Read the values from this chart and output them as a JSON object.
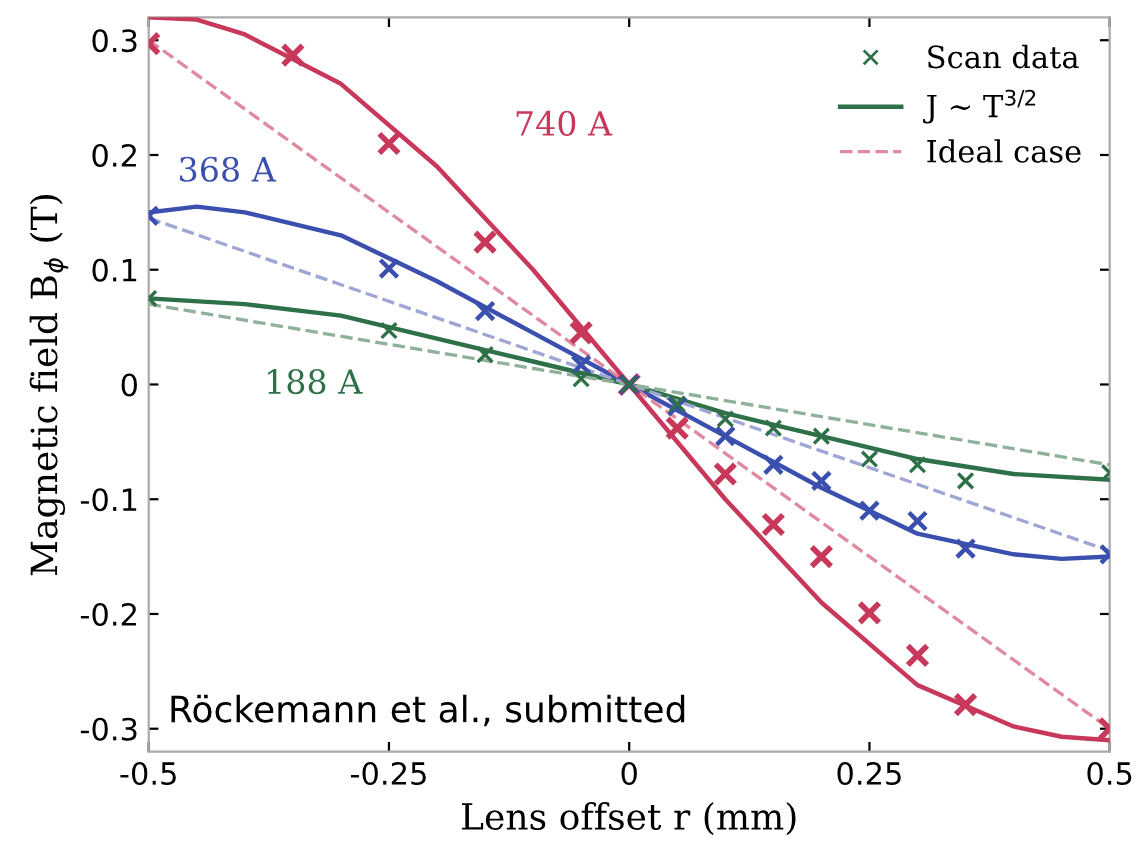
{
  "chart_data": {
    "type": "line",
    "xlabel": "Lens offset r (mm)",
    "ylabel": "Magnetic field B$_{ϕ}$ (T)",
    "xlim": [
      -0.5,
      0.5
    ],
    "xticks": [
      -0.5,
      -0.25,
      0,
      0.25,
      0.5
    ],
    "ylim": [
      -0.32,
      0.32
    ],
    "yticks": [
      -0.3,
      -0.2,
      -0.1,
      0,
      0.1,
      0.2,
      0.3
    ],
    "grid": false,
    "legend": "top right",
    "series": [
      {
        "type": "scatter",
        "marker": "cross",
        "color": "#c8385a",
        "x": [
          -0.5,
          -0.35,
          -0.25,
          -0.15,
          -0.05,
          0,
          0.05,
          0.1,
          0.15,
          0.2,
          0.25,
          0.3,
          0.35,
          0.5
        ],
        "values": [
          0.297,
          0.287,
          0.21,
          0.124,
          0.045,
          0,
          -0.038,
          -0.078,
          -0.122,
          -0.15,
          -0.199,
          -0.236,
          -0.279,
          -0.3
        ]
      },
      {
        "type": "scatter",
        "marker": "cross",
        "color": "#3a4fae",
        "x": [
          -0.5,
          -0.25,
          -0.15,
          -0.05,
          0,
          0.05,
          0.1,
          0.15,
          0.2,
          0.25,
          0.3,
          0.35,
          0.5
        ],
        "values": [
          0.147,
          0.101,
          0.064,
          0.017,
          0,
          -0.019,
          -0.045,
          -0.07,
          -0.084,
          -0.11,
          -0.119,
          -0.143,
          -0.148
        ]
      },
      {
        "type": "scatter",
        "marker": "cross",
        "name": "Scan data",
        "color": "#2e7047",
        "x": [
          -0.5,
          -0.25,
          -0.15,
          -0.05,
          0,
          0.05,
          0.1,
          0.15,
          0.2,
          0.25,
          0.3,
          0.35,
          0.5
        ],
        "values": [
          0.075,
          0.047,
          0.026,
          0.005,
          0,
          -0.017,
          -0.03,
          -0.038,
          -0.045,
          -0.065,
          -0.07,
          -0.084,
          -0.077
        ]
      },
      {
        "line_style": "solid",
        "color": "#c8385a",
        "x": [
          -0.5,
          -0.45,
          -0.4,
          -0.3,
          -0.2,
          -0.1,
          0,
          0.1,
          0.2,
          0.3,
          0.4,
          0.45,
          0.5
        ],
        "values": [
          0.32,
          0.318,
          0.305,
          0.262,
          0.19,
          0.1,
          0,
          -0.1,
          -0.19,
          -0.262,
          -0.298,
          -0.307,
          -0.31
        ]
      },
      {
        "line_style": "solid",
        "color": "#3a4fae",
        "x": [
          -0.5,
          -0.45,
          -0.4,
          -0.3,
          -0.2,
          -0.1,
          0,
          0.1,
          0.2,
          0.3,
          0.4,
          0.45,
          0.5
        ],
        "values": [
          0.15,
          0.155,
          0.15,
          0.13,
          0.09,
          0.045,
          0,
          -0.045,
          -0.09,
          -0.13,
          -0.148,
          -0.152,
          -0.15
        ]
      },
      {
        "line_style": "solid",
        "name": "J ∼ T$^{3/2}$",
        "color": "#2e7047",
        "x": [
          -0.5,
          -0.4,
          -0.3,
          -0.2,
          -0.1,
          0,
          0.1,
          0.2,
          0.3,
          0.4,
          0.5
        ],
        "values": [
          0.075,
          0.07,
          0.06,
          0.04,
          0.02,
          0,
          -0.025,
          -0.045,
          -0.065,
          -0.078,
          -0.083
        ]
      },
      {
        "line_style": "dashed",
        "name": "Ideal case",
        "color": "#e08aa0",
        "x": [
          -0.5,
          0.5
        ],
        "values": [
          0.3,
          -0.3
        ]
      },
      {
        "line_style": "dashed",
        "color": "#9fa6d6",
        "x": [
          -0.5,
          0.5
        ],
        "values": [
          0.145,
          -0.145
        ]
      },
      {
        "line_style": "dashed",
        "color": "#8fb09a",
        "x": [
          -0.5,
          0.5
        ],
        "values": [
          0.07,
          -0.07
        ]
      }
    ],
    "annotations": [
      "740 A",
      "368 A",
      "188 A",
      "Röckemann et al., submitted"
    ]
  }
}
